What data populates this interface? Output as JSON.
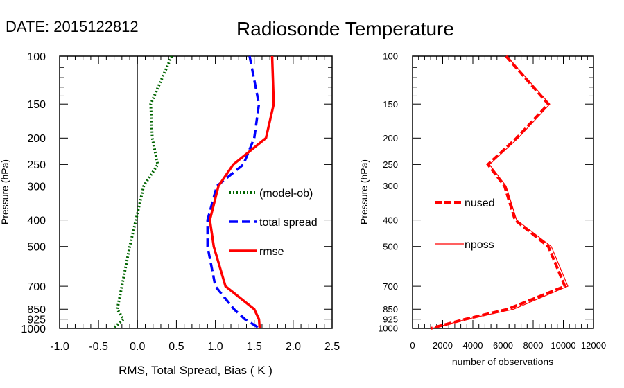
{
  "date_label": "DATE: 2015122812",
  "title": "Radiosonde Temperature",
  "chart_data": [
    {
      "type": "line",
      "ylabel": "Pressure (hPa)",
      "xlabel": "RMS, Total Spread, Bias ( K )",
      "y_scale": "log",
      "y_inverted": true,
      "ylim": [
        1000,
        100
      ],
      "xlim": [
        -1.0,
        2.5
      ],
      "xticks": [
        "-1.0",
        "-0.5",
        "0.0",
        "0.5",
        "1.0",
        "1.5",
        "2.0",
        "2.5"
      ],
      "xtick_values": [
        -1.0,
        -0.5,
        0.0,
        0.5,
        1.0,
        1.5,
        2.0,
        2.5
      ],
      "yticks": [
        "100",
        "150",
        "200",
        "250",
        "300",
        "400",
        "500",
        "700",
        "850",
        "925",
        "1000"
      ],
      "ytick_values": [
        100,
        150,
        200,
        250,
        300,
        400,
        500,
        700,
        850,
        925,
        1000
      ],
      "legend_placement": "inside-right",
      "zero_line": true,
      "pressure": [
        100,
        150,
        200,
        250,
        300,
        400,
        500,
        700,
        850,
        925,
        1000
      ],
      "series": [
        {
          "name": "(model-ob)",
          "color": "#006400",
          "style": "dotted",
          "values": [
            0.44,
            0.17,
            0.19,
            0.26,
            0.08,
            -0.02,
            -0.1,
            -0.2,
            -0.26,
            -0.18,
            -0.31
          ]
        },
        {
          "name": "total spread",
          "color": "#0000ff",
          "style": "dashed",
          "values": [
            1.44,
            1.56,
            1.5,
            1.36,
            1.02,
            0.9,
            0.9,
            1.0,
            1.24,
            1.38,
            1.57
          ]
        },
        {
          "name": "rmse",
          "color": "#ff0000",
          "style": "solid",
          "values": [
            1.73,
            1.75,
            1.65,
            1.23,
            1.04,
            0.93,
            0.98,
            1.13,
            1.5,
            1.56,
            1.57
          ]
        }
      ]
    },
    {
      "type": "line",
      "ylabel": "Pressure (hPa)",
      "xlabel": "number of observations",
      "y_scale": "log",
      "y_inverted": true,
      "ylim": [
        1000,
        100
      ],
      "xlim": [
        0,
        12000
      ],
      "xticks": [
        "0",
        "2000",
        "4000",
        "6000",
        "8000",
        "10000",
        "12000"
      ],
      "xtick_values": [
        0,
        2000,
        4000,
        6000,
        8000,
        10000,
        12000
      ],
      "yticks": [
        "100",
        "150",
        "200",
        "250",
        "300",
        "400",
        "500",
        "700",
        "850",
        "925",
        "1000"
      ],
      "ytick_values": [
        100,
        150,
        200,
        250,
        300,
        400,
        500,
        700,
        850,
        925,
        1000
      ],
      "legend_placement": "inside-left",
      "pressure": [
        100,
        150,
        200,
        250,
        300,
        400,
        500,
        700,
        850,
        925,
        1000
      ],
      "series": [
        {
          "name": "nused",
          "color": "#ff0000",
          "style": "dashed-thick",
          "values": [
            6200,
            9000,
            6900,
            5000,
            6100,
            6800,
            9000,
            10100,
            6300,
            3500,
            1200
          ]
        },
        {
          "name": "nposs",
          "color": "#ff0000",
          "style": "thin",
          "values": [
            6250,
            9100,
            7000,
            5100,
            6200,
            6900,
            9200,
            10300,
            6700,
            3600,
            1300
          ]
        }
      ]
    }
  ]
}
